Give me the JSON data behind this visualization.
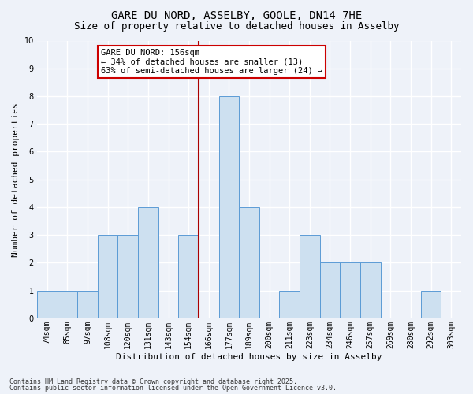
{
  "title": "GARE DU NORD, ASSELBY, GOOLE, DN14 7HE",
  "subtitle": "Size of property relative to detached houses in Asselby",
  "xlabel": "Distribution of detached houses by size in Asselby",
  "ylabel": "Number of detached properties",
  "categories": [
    "74sqm",
    "85sqm",
    "97sqm",
    "108sqm",
    "120sqm",
    "131sqm",
    "143sqm",
    "154sqm",
    "166sqm",
    "177sqm",
    "189sqm",
    "200sqm",
    "211sqm",
    "223sqm",
    "234sqm",
    "246sqm",
    "257sqm",
    "269sqm",
    "280sqm",
    "292sqm",
    "303sqm"
  ],
  "values": [
    1,
    1,
    1,
    3,
    3,
    4,
    0,
    3,
    0,
    8,
    4,
    0,
    1,
    3,
    2,
    2,
    2,
    0,
    0,
    1,
    0
  ],
  "bar_color": "#cde0f0",
  "bar_edge_color": "#5b9bd5",
  "ref_line_idx": 7.5,
  "annotation_title": "GARE DU NORD: 156sqm",
  "annotation_line1": "← 34% of detached houses are smaller (13)",
  "annotation_line2": "63% of semi-detached houses are larger (24) →",
  "ylim": [
    0,
    10
  ],
  "yticks": [
    0,
    1,
    2,
    3,
    4,
    5,
    6,
    7,
    8,
    9,
    10
  ],
  "footer1": "Contains HM Land Registry data © Crown copyright and database right 2025.",
  "footer2": "Contains public sector information licensed under the Open Government Licence v3.0.",
  "background_color": "#eef2f9",
  "grid_color": "#ffffff",
  "title_fontsize": 10,
  "subtitle_fontsize": 9,
  "axis_label_fontsize": 8,
  "tick_fontsize": 7,
  "annotation_fontsize": 7.5,
  "footer_fontsize": 6,
  "annotation_box_color": "#ffffff",
  "annotation_box_edge": "#cc0000",
  "ref_line_color": "#aa0000"
}
